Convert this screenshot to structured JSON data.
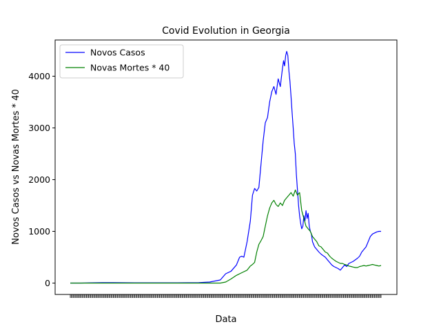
{
  "chart_data": {
    "type": "line",
    "title": "Covid Evolution in Georgia",
    "xlabel": "Data",
    "ylabel": "Novos Casos vs Novas Mortes * 40",
    "x_range": [
      0,
      290
    ],
    "ylim": [
      -220,
      4700
    ],
    "yticks": [
      0,
      1000,
      2000,
      3000,
      4000
    ],
    "xtick_count": 290,
    "grid": false,
    "legend_position": "top-left",
    "series": [
      {
        "name": "Novos Casos",
        "color": "#0000ff",
        "x": [
          0,
          10,
          20,
          30,
          40,
          60,
          80,
          100,
          120,
          130,
          140,
          145,
          150,
          155,
          158,
          160,
          162,
          165,
          168,
          170,
          172,
          174,
          176,
          178,
          180,
          182,
          184,
          186,
          188,
          190,
          192,
          194,
          196,
          198,
          199,
          200,
          201,
          202,
          203,
          204,
          205,
          206,
          207,
          208,
          209,
          210,
          211,
          212,
          213,
          214,
          215,
          216,
          217,
          218,
          219,
          220,
          221,
          222,
          223,
          224,
          225,
          226,
          228,
          230,
          232,
          234,
          236,
          238,
          240,
          242,
          244,
          246,
          248,
          250,
          252,
          254,
          256,
          258,
          260,
          262,
          264,
          266,
          268,
          270,
          272,
          274,
          276,
          278,
          280,
          282,
          284,
          286,
          288,
          290
        ],
        "y": [
          0,
          0,
          5,
          10,
          8,
          5,
          5,
          5,
          10,
          20,
          60,
          180,
          230,
          350,
          500,
          520,
          500,
          800,
          1200,
          1700,
          1830,
          1780,
          1850,
          2300,
          2750,
          3100,
          3200,
          3500,
          3700,
          3800,
          3650,
          3950,
          3800,
          4150,
          4300,
          4200,
          4400,
          4480,
          4400,
          4100,
          3900,
          3600,
          3300,
          3000,
          2700,
          2500,
          2100,
          1800,
          1500,
          1300,
          1150,
          1050,
          1100,
          1300,
          1200,
          1400,
          1250,
          1350,
          1100,
          1000,
          950,
          800,
          700,
          650,
          600,
          560,
          530,
          500,
          450,
          400,
          350,
          320,
          300,
          280,
          250,
          300,
          350,
          320,
          380,
          400,
          420,
          450,
          480,
          520,
          600,
          650,
          700,
          800,
          900,
          950,
          970,
          990,
          1000,
          1000
        ]
      },
      {
        "name": "Novas Mortes * 40",
        "color": "#008000",
        "x": [
          0,
          20,
          40,
          60,
          80,
          100,
          120,
          140,
          145,
          150,
          155,
          160,
          165,
          168,
          170,
          172,
          174,
          176,
          178,
          180,
          182,
          184,
          186,
          188,
          190,
          192,
          194,
          196,
          198,
          200,
          202,
          204,
          206,
          208,
          210,
          212,
          214,
          216,
          218,
          220,
          222,
          224,
          226,
          228,
          230,
          232,
          234,
          236,
          238,
          240,
          242,
          244,
          246,
          248,
          250,
          252,
          254,
          256,
          258,
          260,
          262,
          264,
          266,
          268,
          270,
          272,
          274,
          276,
          278,
          280,
          282,
          284,
          286,
          288,
          290
        ],
        "y": [
          0,
          0,
          0,
          0,
          0,
          0,
          0,
          0,
          20,
          80,
          150,
          200,
          250,
          330,
          360,
          400,
          600,
          750,
          820,
          900,
          1100,
          1300,
          1450,
          1550,
          1600,
          1520,
          1480,
          1550,
          1500,
          1600,
          1650,
          1700,
          1750,
          1680,
          1800,
          1700,
          1750,
          1400,
          1250,
          1100,
          1050,
          1000,
          900,
          850,
          800,
          720,
          700,
          650,
          600,
          580,
          520,
          480,
          450,
          420,
          400,
          380,
          380,
          360,
          350,
          330,
          320,
          310,
          300,
          300,
          320,
          330,
          340,
          330,
          340,
          350,
          360,
          350,
          340,
          330,
          340
        ]
      }
    ]
  }
}
